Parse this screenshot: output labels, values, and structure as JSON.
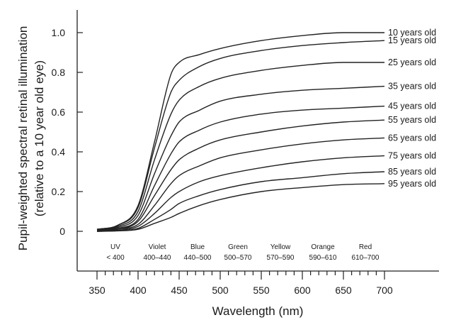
{
  "chart_data": {
    "type": "line",
    "xlabel": "Wavelength (nm)",
    "ylabel": "Pupil-weighted spectral retinal illumination",
    "ylabel_sub": "(relative to a 10 year old eye)",
    "xlim": [
      350,
      700
    ],
    "ylim": [
      0,
      1.0
    ],
    "x_ticks": [
      "350",
      "400",
      "450",
      "500",
      "550",
      "600",
      "650",
      "700"
    ],
    "y_ticks": [
      "0",
      "0.2",
      "0.4",
      "0.6",
      "0.8",
      "1.0"
    ],
    "x": [
      350,
      375,
      400,
      420,
      440,
      450,
      475,
      500,
      550,
      600,
      650,
      700
    ],
    "series": [
      {
        "name": "10 years old",
        "values": [
          0.01,
          0.03,
          0.13,
          0.45,
          0.79,
          0.85,
          0.89,
          0.92,
          0.96,
          0.985,
          1.0,
          1.0
        ]
      },
      {
        "name": "15 years old",
        "values": [
          0.01,
          0.03,
          0.12,
          0.42,
          0.7,
          0.76,
          0.83,
          0.87,
          0.91,
          0.935,
          0.95,
          0.96
        ]
      },
      {
        "name": "25 years old",
        "values": [
          0.01,
          0.025,
          0.1,
          0.36,
          0.59,
          0.66,
          0.73,
          0.77,
          0.81,
          0.835,
          0.85,
          0.85
        ]
      },
      {
        "name": "35 years old",
        "values": [
          0.01,
          0.02,
          0.08,
          0.29,
          0.48,
          0.55,
          0.61,
          0.655,
          0.69,
          0.71,
          0.72,
          0.73
        ]
      },
      {
        "name": "45 years old",
        "values": [
          0.005,
          0.015,
          0.06,
          0.23,
          0.39,
          0.45,
          0.51,
          0.55,
          0.59,
          0.61,
          0.62,
          0.63
        ]
      },
      {
        "name": "55 years old",
        "values": [
          0.005,
          0.01,
          0.05,
          0.18,
          0.31,
          0.36,
          0.42,
          0.46,
          0.5,
          0.53,
          0.55,
          0.56
        ]
      },
      {
        "name": "65 years old",
        "values": [
          0.0,
          0.01,
          0.035,
          0.13,
          0.24,
          0.28,
          0.33,
          0.37,
          0.41,
          0.44,
          0.46,
          0.47
        ]
      },
      {
        "name": "75 years old",
        "values": [
          0.0,
          0.005,
          0.025,
          0.09,
          0.17,
          0.2,
          0.25,
          0.28,
          0.32,
          0.35,
          0.37,
          0.38
        ]
      },
      {
        "name": "85 years old",
        "values": [
          0.0,
          0.003,
          0.015,
          0.06,
          0.11,
          0.14,
          0.18,
          0.21,
          0.25,
          0.27,
          0.29,
          0.3
        ]
      },
      {
        "name": "95 years old",
        "values": [
          0.0,
          0.002,
          0.01,
          0.04,
          0.07,
          0.09,
          0.13,
          0.16,
          0.2,
          0.22,
          0.235,
          0.24
        ]
      }
    ],
    "bands": [
      {
        "name": "UV",
        "range": "< 400"
      },
      {
        "name": "Violet",
        "range": "400–440"
      },
      {
        "name": "Blue",
        "range": "440–500"
      },
      {
        "name": "Green",
        "range": "500–570"
      },
      {
        "name": "Yellow",
        "range": "570–590"
      },
      {
        "name": "Orange",
        "range": "590–610"
      },
      {
        "name": "Red",
        "range": "610–700"
      }
    ],
    "grid": false,
    "legend": "labels at right end of curves"
  }
}
